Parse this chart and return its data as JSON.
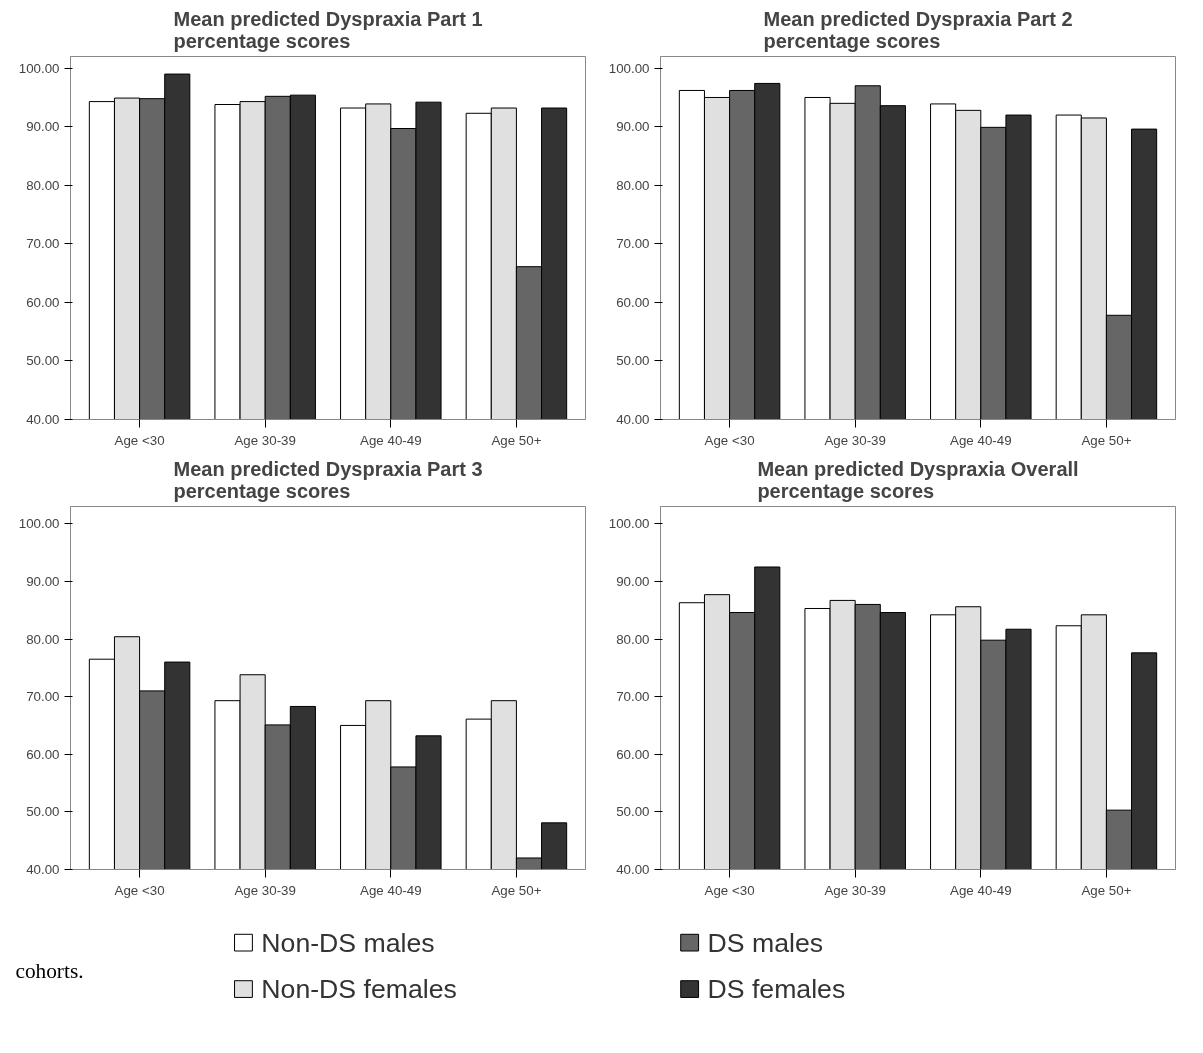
{
  "chart_data": [
    {
      "type": "bar",
      "title": "Mean predicted Dyspraxia Part 1 percentage scores",
      "categories": [
        "Age <30",
        "Age 30-39",
        "Age 40-49",
        "Age 50+"
      ],
      "series": [
        {
          "name": "Non-DS males",
          "color": "#ffffff",
          "values": [
            94.3,
            93.8,
            93.2,
            92.3
          ]
        },
        {
          "name": "Non-DS females",
          "color": "#e0e0e0",
          "values": [
            94.9,
            94.3,
            93.9,
            93.2
          ]
        },
        {
          "name": "DS males",
          "color": "#666666",
          "values": [
            94.8,
            95.2,
            89.7,
            66.1
          ]
        },
        {
          "name": "DS females",
          "color": "#333333",
          "values": [
            99.0,
            95.4,
            94.2,
            93.2
          ]
        }
      ],
      "ylim": [
        40,
        102
      ],
      "yticks": [
        {
          "value": 40,
          "label": "40.00"
        },
        {
          "value": 50,
          "label": "50.00"
        },
        {
          "value": 60,
          "label": "60.00"
        },
        {
          "value": 70,
          "label": "70.00"
        },
        {
          "value": 80,
          "label": "80.00"
        },
        {
          "value": 90,
          "label": "90.00"
        },
        {
          "value": 100,
          "label": "100.00"
        }
      ],
      "legend": "bottom",
      "grid": false,
      "annotations": [
        "cohorts."
      ]
    },
    {
      "type": "bar",
      "title": "Mean predicted Dyspraxia Part 2 percentage scores",
      "categories": [
        "Age <30",
        "Age 30-39",
        "Age 40-49",
        "Age 50+"
      ],
      "series": [
        {
          "color": "#ffffff",
          "values": [
            96.2,
            95.0,
            93.9,
            92.0
          ]
        },
        {
          "color": "#e0e0e0",
          "values": [
            95.0,
            94.0,
            92.8,
            91.5
          ]
        },
        {
          "color": "#666666",
          "values": [
            96.2,
            97.0,
            89.9,
            57.8
          ]
        },
        {
          "color": "#333333",
          "values": [
            97.4,
            93.6,
            92.0,
            89.6
          ]
        }
      ],
      "ylim": [
        40,
        102
      ],
      "yticks": [
        {
          "value": 40,
          "label": "40.00"
        },
        {
          "value": 50,
          "label": "50.00"
        },
        {
          "value": 60,
          "label": "60.00"
        },
        {
          "value": 70,
          "label": "70.00"
        },
        {
          "value": 80,
          "label": "80.00"
        },
        {
          "value": 90,
          "label": "90.00"
        },
        {
          "value": 100,
          "label": "100.00"
        }
      ],
      "grid": false
    },
    {
      "type": "bar",
      "title": "Mean predicted Dyspraxia Part 3 percentage scores",
      "categories": [
        "Age <30",
        "Age 30-39",
        "Age 40-49",
        "Age 50+"
      ],
      "series": [
        {
          "color": "#ffffff",
          "values": [
            76.5,
            69.3,
            65.0,
            66.1
          ]
        },
        {
          "color": "#e0e0e0",
          "values": [
            80.4,
            73.8,
            69.3,
            69.3
          ]
        },
        {
          "color": "#666666",
          "values": [
            71.0,
            65.1,
            57.8,
            42.0
          ]
        },
        {
          "color": "#333333",
          "values": [
            76.0,
            68.3,
            63.2,
            48.1
          ]
        }
      ],
      "ylim": [
        40,
        103
      ],
      "yticks": [
        {
          "value": 40,
          "label": "40.00"
        },
        {
          "value": 50,
          "label": "50.00"
        },
        {
          "value": 60,
          "label": "60.00"
        },
        {
          "value": 70,
          "label": "70.00"
        },
        {
          "value": 80,
          "label": "80.00"
        },
        {
          "value": 90,
          "label": "90.00"
        },
        {
          "value": 100,
          "label": "100.00"
        }
      ],
      "grid": false
    },
    {
      "type": "bar",
      "title": "Mean predicted Dyspraxia Overall percentage scores",
      "categories": [
        "Age <30",
        "Age 30-39",
        "Age 40-49",
        "Age 50+"
      ],
      "series": [
        {
          "color": "#ffffff",
          "values": [
            86.3,
            85.3,
            84.2,
            82.3
          ]
        },
        {
          "color": "#e0e0e0",
          "values": [
            87.7,
            86.7,
            85.6,
            84.2
          ]
        },
        {
          "color": "#666666",
          "values": [
            84.6,
            86.0,
            79.8,
            50.3
          ]
        },
        {
          "color": "#333333",
          "values": [
            92.5,
            84.6,
            81.7,
            77.6
          ]
        }
      ],
      "ylim": [
        40,
        103
      ],
      "yticks": [
        {
          "value": 40,
          "label": "40.00"
        },
        {
          "value": 50,
          "label": "50.00"
        },
        {
          "value": 60,
          "label": "60.00"
        },
        {
          "value": 70,
          "label": "70.00"
        },
        {
          "value": 80,
          "label": "80.00"
        },
        {
          "value": 90,
          "label": "90.00"
        },
        {
          "value": 100,
          "label": "100.00"
        }
      ],
      "grid": false
    }
  ]
}
